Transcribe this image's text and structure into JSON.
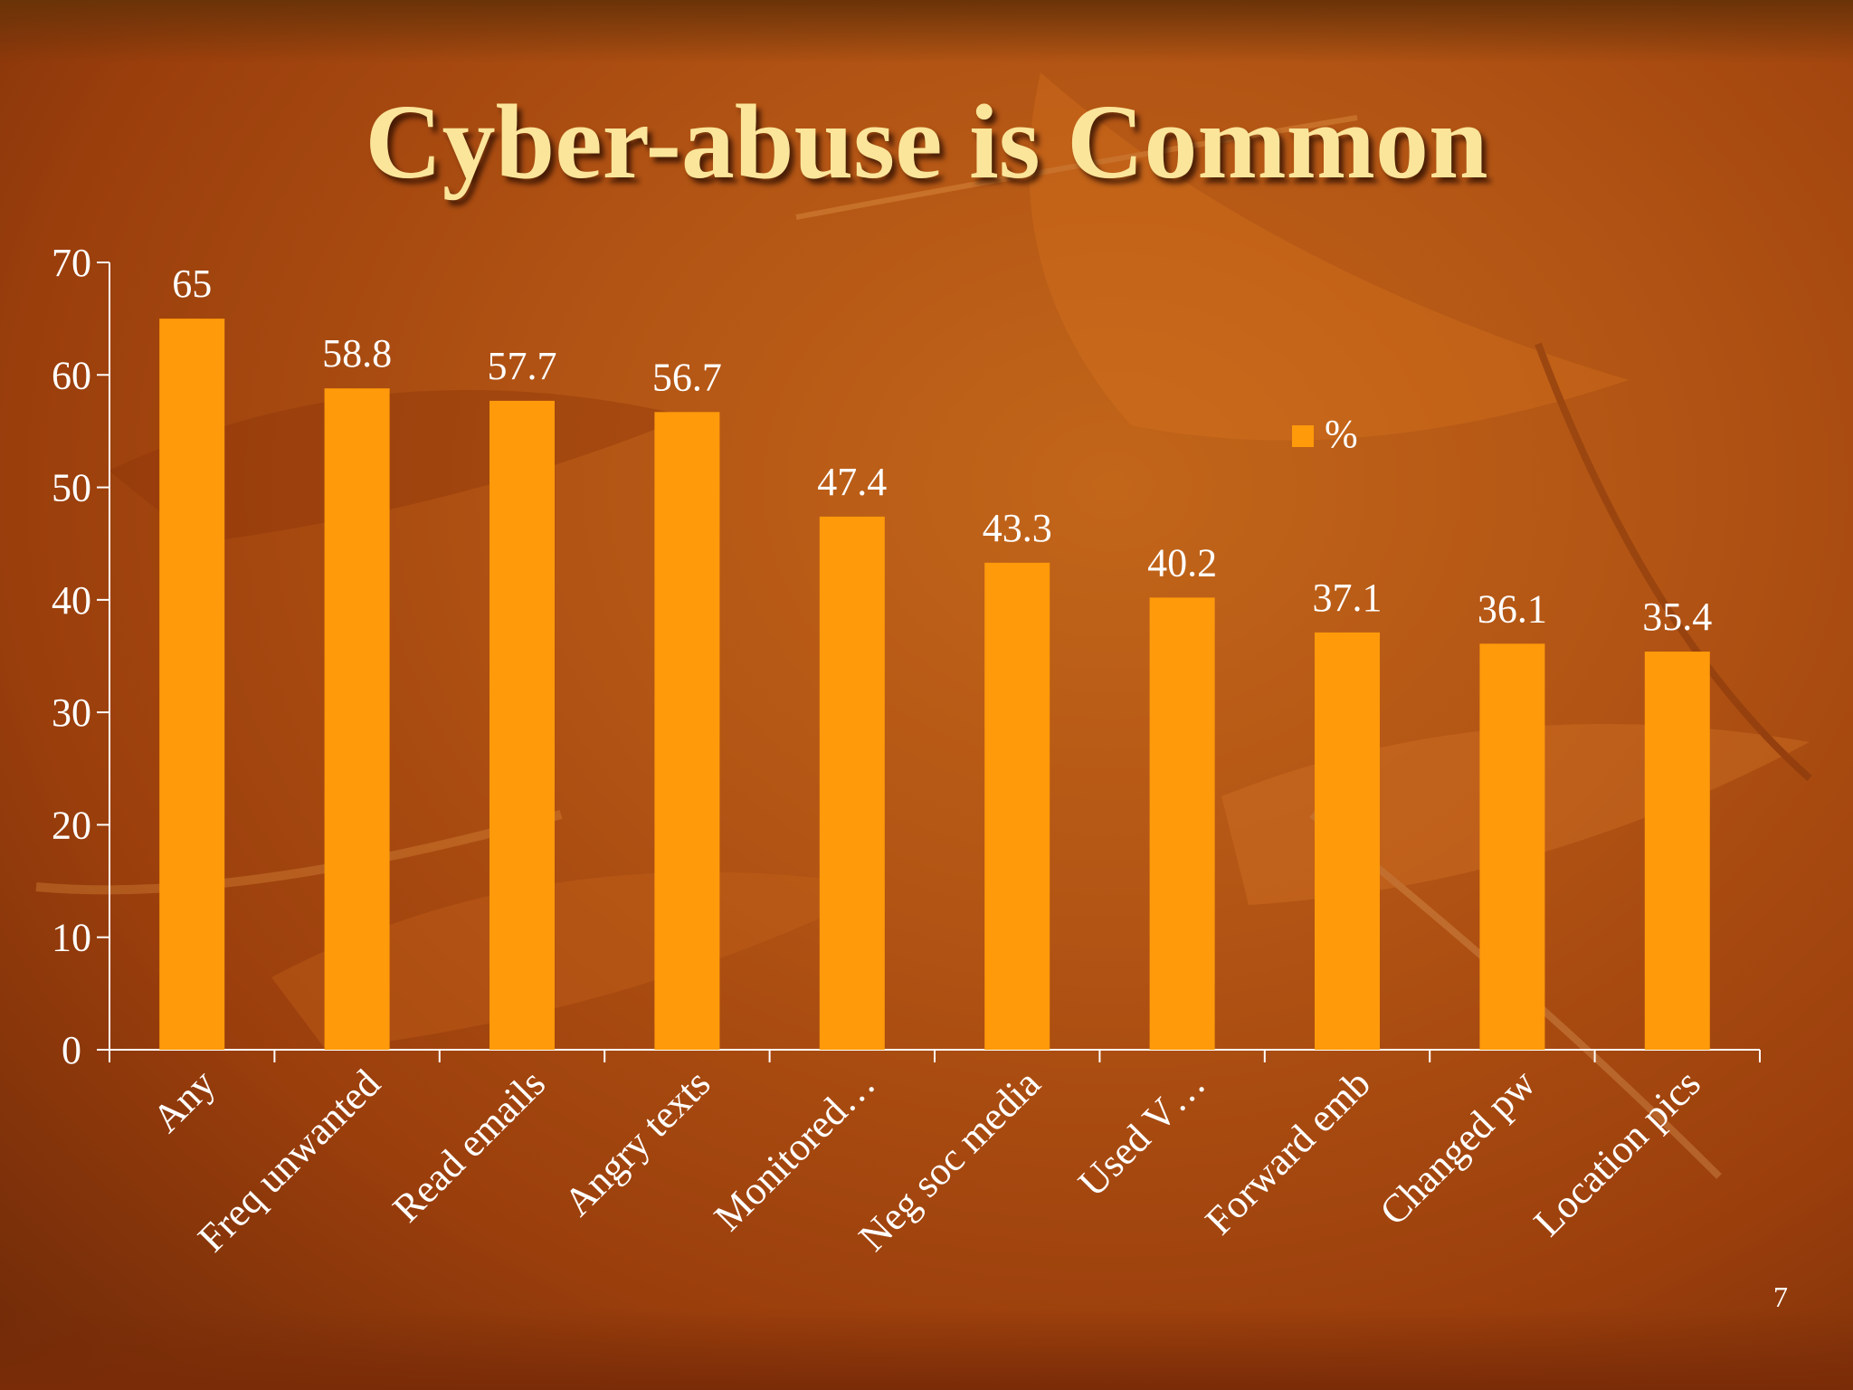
{
  "slide": {
    "title": "Cyber-abuse is Common",
    "number": "7"
  },
  "colors": {
    "bar": "#ff9a0a",
    "text": "#ffffff",
    "title": "#fbe59a",
    "axis": "#ffffff"
  },
  "chart_data": {
    "type": "bar",
    "title": "",
    "xlabel": "",
    "ylabel": "",
    "ylim": [
      0,
      70
    ],
    "yticks": [
      0,
      10,
      20,
      30,
      40,
      50,
      60,
      70
    ],
    "grid": false,
    "legend_position": "right",
    "categories": [
      "Any",
      "Freq unwanted",
      "Read emails",
      "Angry texts",
      "Monitored…",
      "Neg soc media",
      "Used V…",
      "Forward emb",
      "Changed pw",
      "Location pics"
    ],
    "series": [
      {
        "name": "%",
        "values": [
          65,
          58.8,
          57.7,
          56.7,
          47.4,
          43.3,
          40.2,
          37.1,
          36.1,
          35.4
        ]
      }
    ],
    "data_labels": [
      "65",
      "58.8",
      "57.7",
      "56.7",
      "47.4",
      "43.3",
      "40.2",
      "37.1",
      "36.1",
      "35.4"
    ]
  }
}
